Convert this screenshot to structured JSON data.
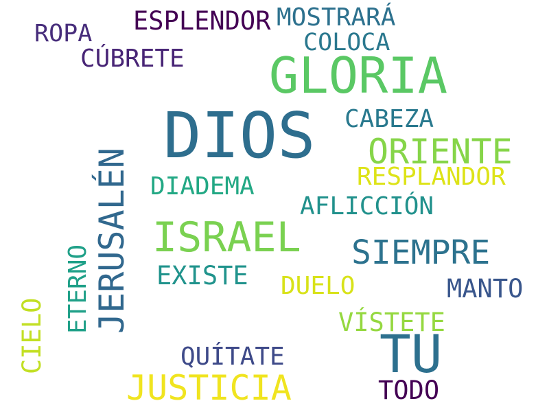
{
  "word_cloud": {
    "background": "#ffffff",
    "words": [
      {
        "id": "dios",
        "text": "DIOS",
        "color": "#2e6e8e",
        "vertical": false
      },
      {
        "id": "gloria",
        "text": "GLORIA",
        "color": "#5ac864",
        "vertical": false
      },
      {
        "id": "tu",
        "text": "TU",
        "color": "#2d708e",
        "vertical": false
      },
      {
        "id": "israel",
        "text": "ISRAEL",
        "color": "#7ad151",
        "vertical": false
      },
      {
        "id": "jerusalen",
        "text": "JERUSALÉN",
        "color": "#31688e",
        "vertical": true
      },
      {
        "id": "oriente",
        "text": "ORIENTE",
        "color": "#86d549",
        "vertical": false
      },
      {
        "id": "siempre",
        "text": "SIEMPRE",
        "color": "#2c728e",
        "vertical": false
      },
      {
        "id": "justicia",
        "text": "JUSTICIA",
        "color": "#f0e41f",
        "vertical": false
      },
      {
        "id": "esplendor",
        "text": "ESPLENDOR",
        "color": "#440154",
        "vertical": false
      },
      {
        "id": "mostrara",
        "text": "MOSTRARÁ",
        "color": "#2d718e",
        "vertical": false
      },
      {
        "id": "colocar",
        "text": "COLOCA",
        "color": "#2a788e",
        "vertical": false
      },
      {
        "id": "ropa",
        "text": "ROPA",
        "color": "#472d7b",
        "vertical": false
      },
      {
        "id": "cubrete",
        "text": "CÚBRETE",
        "color": "#482576",
        "vertical": false
      },
      {
        "id": "cabeza",
        "text": "CABEZA",
        "color": "#29798e",
        "vertical": false
      },
      {
        "id": "resplandor",
        "text": "RESPLANDOR",
        "color": "#dde318",
        "vertical": false
      },
      {
        "id": "diadema",
        "text": "DIADEMA",
        "color": "#22a884",
        "vertical": false
      },
      {
        "id": "afliccion",
        "text": "AFLICCIÓN",
        "color": "#21918c",
        "vertical": false
      },
      {
        "id": "existe",
        "text": "EXISTE",
        "color": "#20938c",
        "vertical": false
      },
      {
        "id": "duelo",
        "text": "DUELO",
        "color": "#d8e219",
        "vertical": false
      },
      {
        "id": "manto",
        "text": "MANTO",
        "color": "#39568c",
        "vertical": false
      },
      {
        "id": "vistete",
        "text": "VÍSTETE",
        "color": "#95d840",
        "vertical": false
      },
      {
        "id": "quitate",
        "text": "QUÍTATE",
        "color": "#3e4a89",
        "vertical": false
      },
      {
        "id": "todo",
        "text": "TODO",
        "color": "#440154",
        "vertical": false
      },
      {
        "id": "eterno",
        "text": "ETERNO",
        "color": "#1fa088",
        "vertical": true
      },
      {
        "id": "cielo",
        "text": "CIELO",
        "color": "#c2df23",
        "vertical": true
      }
    ]
  }
}
